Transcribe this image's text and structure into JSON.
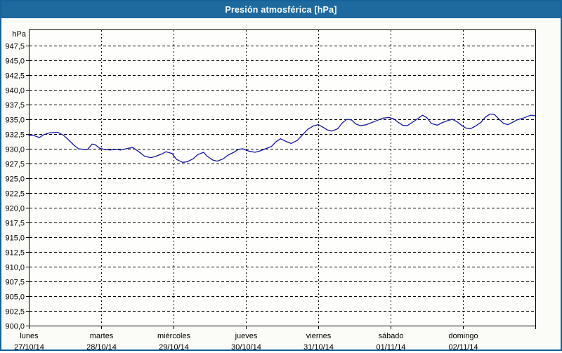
{
  "window": {
    "title": "Presión atmosférica [hPa]"
  },
  "colors": {
    "frame_border": "#15619a",
    "titlebar_bg": "#1e6a9e",
    "titlebar_text": "#ffffff",
    "page_bg": "#fbfcf8",
    "plot_bg": "#fefefc",
    "plot_border": "#000000",
    "grid": "#000000",
    "line": "#1414aa",
    "label_text": "#000000"
  },
  "chart_data": {
    "type": "line",
    "title": "Presión atmosférica [hPa]",
    "xlabel": "",
    "ylabel": "hPa",
    "ylim": [
      900,
      947.5
    ],
    "ytick_step": 2.5,
    "ytick_labels": [
      "900,0",
      "902,5",
      "905,0",
      "907,5",
      "910,0",
      "912,5",
      "915,0",
      "917,5",
      "920,0",
      "922,5",
      "925,0",
      "927,5",
      "930,0",
      "932,5",
      "935,0",
      "937,5",
      "940,0",
      "942,5",
      "945,0",
      "947,5"
    ],
    "x_total_hours": 168,
    "hours_per_day": 24,
    "x_day_ticks": [
      {
        "day": "lunes",
        "date": "27/10/14",
        "hour": 0
      },
      {
        "day": "martes",
        "date": "28/10/14",
        "hour": 24
      },
      {
        "day": "miércoles",
        "date": "29/10/14",
        "hour": 48
      },
      {
        "day": "jueves",
        "date": "30/10/14",
        "hour": 72
      },
      {
        "day": "viernes",
        "date": "31/10/14",
        "hour": 96
      },
      {
        "day": "sábado",
        "date": "01/11/14",
        "hour": 120
      },
      {
        "day": "domingo",
        "date": "02/11/14",
        "hour": 144
      }
    ],
    "grid": "dashed",
    "legend": "none",
    "series": [
      {
        "name": "Presión atmosférica",
        "unit": "hPa",
        "color": "#1414aa",
        "points": [
          [
            0,
            932.2
          ],
          [
            1.5,
            932.3
          ],
          [
            3.5,
            931.9
          ],
          [
            5,
            932.4
          ],
          [
            7,
            932.7
          ],
          [
            9.5,
            932.8
          ],
          [
            11.5,
            932.3
          ],
          [
            13,
            931.6
          ],
          [
            15,
            930.6
          ],
          [
            16.5,
            930.0
          ],
          [
            18,
            929.9
          ],
          [
            19.5,
            929.9
          ],
          [
            21,
            930.8
          ],
          [
            22,
            930.7
          ],
          [
            23.5,
            930.1
          ],
          [
            25,
            929.9
          ],
          [
            27,
            929.8
          ],
          [
            29,
            929.9
          ],
          [
            30.5,
            929.8
          ],
          [
            33,
            930.1
          ],
          [
            34.5,
            930.2
          ],
          [
            36.5,
            929.5
          ],
          [
            38.5,
            928.7
          ],
          [
            40.5,
            928.5
          ],
          [
            42,
            928.7
          ],
          [
            44,
            929.1
          ],
          [
            45.5,
            929.5
          ],
          [
            47.5,
            929.2
          ],
          [
            49,
            928.2
          ],
          [
            51,
            927.7
          ],
          [
            52.5,
            927.8
          ],
          [
            54.5,
            928.3
          ],
          [
            56,
            929.0
          ],
          [
            58,
            929.4
          ],
          [
            59,
            928.8
          ],
          [
            61,
            928.1
          ],
          [
            62.5,
            927.9
          ],
          [
            64.5,
            928.3
          ],
          [
            66,
            928.9
          ],
          [
            68,
            929.4
          ],
          [
            69.5,
            929.9
          ],
          [
            71,
            930.0
          ],
          [
            73,
            929.6
          ],
          [
            75,
            929.4
          ],
          [
            76.5,
            929.6
          ],
          [
            78.5,
            930.0
          ],
          [
            80.5,
            930.4
          ],
          [
            82,
            931.2
          ],
          [
            83.5,
            931.7
          ],
          [
            85.5,
            931.2
          ],
          [
            87,
            930.9
          ],
          [
            89,
            931.4
          ],
          [
            90.5,
            932.2
          ],
          [
            92.5,
            933.3
          ],
          [
            94.5,
            933.9
          ],
          [
            96,
            934.1
          ],
          [
            97.5,
            933.7
          ],
          [
            99,
            933.2
          ],
          [
            100.5,
            933.0
          ],
          [
            102.5,
            933.4
          ],
          [
            104,
            934.4
          ],
          [
            105.5,
            935.0
          ],
          [
            107,
            934.9
          ],
          [
            108.5,
            934.2
          ],
          [
            110,
            933.9
          ],
          [
            112,
            934.1
          ],
          [
            114,
            934.5
          ],
          [
            116,
            934.9
          ],
          [
            117.5,
            935.2
          ],
          [
            119.5,
            935.3
          ],
          [
            121,
            935.1
          ],
          [
            122.5,
            934.5
          ],
          [
            124,
            934.0
          ],
          [
            125.5,
            933.9
          ],
          [
            127,
            934.4
          ],
          [
            129,
            935.1
          ],
          [
            130.5,
            935.7
          ],
          [
            132,
            935.3
          ],
          [
            133.5,
            934.3
          ],
          [
            135.5,
            934.0
          ],
          [
            137,
            934.4
          ],
          [
            139,
            934.8
          ],
          [
            140.5,
            935.0
          ],
          [
            142,
            934.6
          ],
          [
            143.5,
            934.0
          ],
          [
            145,
            933.5
          ],
          [
            146.5,
            933.4
          ],
          [
            148,
            933.8
          ],
          [
            150,
            934.5
          ],
          [
            151.5,
            935.4
          ],
          [
            153,
            935.9
          ],
          [
            154.5,
            935.8
          ],
          [
            156,
            935.0
          ],
          [
            157.5,
            934.3
          ],
          [
            159,
            934.1
          ],
          [
            160.5,
            934.5
          ],
          [
            162,
            934.9
          ],
          [
            164,
            935.2
          ],
          [
            165.5,
            935.5
          ],
          [
            166.5,
            935.7
          ],
          [
            168,
            935.6
          ]
        ]
      }
    ]
  }
}
